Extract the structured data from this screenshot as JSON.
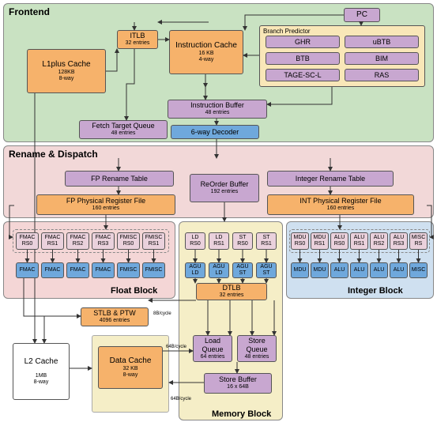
{
  "colors": {
    "frontend_bg": "#c9e2c2",
    "rename_bg": "#f2d8d8",
    "float_bg": "#f4d6d6",
    "integer_bg": "#cfe0f0",
    "memory_bg": "#f5eec7",
    "orange": "#f6b26b",
    "purple": "#c8a7d0",
    "blue": "#6fa8dc",
    "lightblue": "#9fc5e8",
    "pink": "#ead1dc",
    "tan": "#f9e7b8",
    "white": "#ffffff"
  },
  "sections": {
    "frontend": "Frontend",
    "rename": "Rename & Dispatch",
    "float": "Float Block",
    "integer": "Integer Block",
    "memory": "Memory Block"
  },
  "pc": "PC",
  "branch_predictor": {
    "title": "Branch Predictor",
    "items": [
      "GHR",
      "uBTB",
      "BTB",
      "BIM",
      "TAGE-SC-L",
      "RAS"
    ]
  },
  "itlb": {
    "label": "ITLB",
    "sub": "32 entries"
  },
  "icache": {
    "label": "Instruction Cache",
    "sub1": "16 KB",
    "sub2": "4-way"
  },
  "l1plus": {
    "label": "L1plus Cache",
    "sub1": "128KB",
    "sub2": "8-way"
  },
  "ibuf": {
    "label": "Instruction Buffer",
    "sub": "48 entries"
  },
  "ftq": {
    "label": "Fetch Target Queue",
    "sub": "48 entries"
  },
  "decoder": "6-way Decoder",
  "fp_rename": "FP Rename Table",
  "int_rename": "Integer Rename Table",
  "rob": {
    "label": "ReOrder Buffer",
    "sub": "192 entries"
  },
  "fp_prf": {
    "label": "FP Physical Register File",
    "sub": "160 entries"
  },
  "int_prf": {
    "label": "INT Physical Register File",
    "sub": "160 entries"
  },
  "float_rs": [
    "FMAC RS0",
    "FMAC RS1",
    "FMAC RS2",
    "FMAC RS3",
    "FMISC RS0",
    "FMISC RS1"
  ],
  "float_fu": [
    "FMAC",
    "FMAC",
    "FMAC",
    "FMAC",
    "FMISC",
    "FMISC"
  ],
  "mem_rs": [
    "LD RS0",
    "LD RS1",
    "ST RS0",
    "ST RS1"
  ],
  "mem_fu": [
    "AGU LD",
    "AGU LD",
    "AGU ST",
    "AGU ST"
  ],
  "int_rs": [
    "MDU RS0",
    "MDU RS1",
    "ALU RS0",
    "ALU RS1",
    "ALU RS2",
    "ALU RS3",
    "MISC RS"
  ],
  "int_fu": [
    "MDU",
    "MDU",
    "ALU",
    "ALU",
    "ALU",
    "ALU",
    "MISC"
  ],
  "dtlb": {
    "label": "DTLB",
    "sub": "32 entries"
  },
  "stlb": {
    "label": "STLB & PTW",
    "sub": "4096 entries"
  },
  "l2": {
    "label": "L2 Cache",
    "sub1": "1MB",
    "sub2": "8-way"
  },
  "dcache": {
    "label": "Data Cache",
    "sub1": "32 KB",
    "sub2": "8-way"
  },
  "lq": {
    "label": "Load Queue",
    "sub": "64 entries"
  },
  "sq": {
    "label": "Store Queue",
    "sub": "48 entries"
  },
  "sb": {
    "label": "Store Buffer",
    "sub": "16 x 64B"
  },
  "bw": {
    "a": "8B/cycle",
    "b": "64B/cycle",
    "c": "64B/cycle"
  }
}
